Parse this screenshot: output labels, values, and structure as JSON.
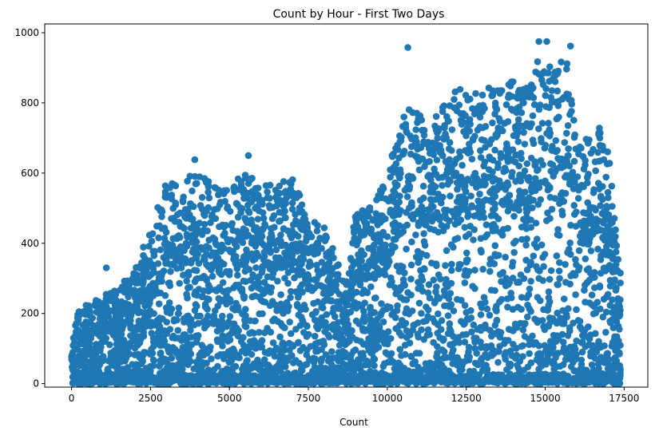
{
  "chart_data": {
    "type": "scatter",
    "title": "Count by Hour - First Two Days",
    "xlabel": "Count",
    "ylabel": "",
    "xlim": [
      -850,
      18250
    ],
    "ylim": [
      -10,
      1025
    ],
    "x_ticks": [
      0,
      2500,
      5000,
      7500,
      10000,
      12500,
      15000,
      17500
    ],
    "y_ticks": [
      0,
      200,
      400,
      600,
      800,
      1000
    ],
    "x_tick_labels": [
      "0",
      "2500",
      "5000",
      "7500",
      "10000",
      "12500",
      "15000",
      "17500"
    ],
    "y_tick_labels": [
      "0",
      "200",
      "400",
      "600",
      "800",
      "1000"
    ],
    "grid": false,
    "legend": "none",
    "marker_color": "#1f77b4",
    "x_range": [
      0,
      17380
    ],
    "envelope": {
      "x": [
        0,
        200,
        600,
        1000,
        1500,
        2000,
        2500,
        2800,
        3000,
        3500,
        4000,
        4500,
        5000,
        5500,
        5700,
        6000,
        6500,
        7000,
        7500,
        8000,
        8400,
        8700,
        9000,
        9500,
        10000,
        10300,
        10600,
        11000,
        11500,
        12000,
        12500,
        13000,
        13500,
        14000,
        14500,
        14800,
        15000,
        15500,
        15800,
        16000,
        16500,
        16700,
        17000,
        17380
      ],
      "y": [
        100,
        215,
        235,
        255,
        285,
        330,
        455,
        530,
        600,
        595,
        620,
        580,
        560,
        630,
        610,
        580,
        580,
        620,
        480,
        455,
        365,
        300,
        510,
        520,
        600,
        730,
        800,
        790,
        790,
        860,
        860,
        860,
        870,
        890,
        870,
        960,
        920,
        940,
        940,
        700,
        720,
        750,
        680,
        310
      ]
    },
    "notable_points": [
      {
        "x": 1100,
        "y": 330
      },
      {
        "x": 3900,
        "y": 638
      },
      {
        "x": 5600,
        "y": 650
      },
      {
        "x": 10650,
        "y": 958
      },
      {
        "x": 14800,
        "y": 975
      },
      {
        "x": 15050,
        "y": 975
      },
      {
        "x": 15800,
        "y": 962
      },
      {
        "x": 17380,
        "y": 315
      }
    ]
  }
}
